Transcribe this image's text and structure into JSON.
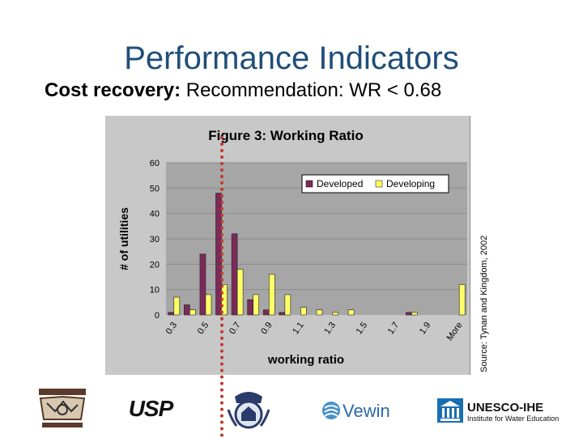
{
  "slide": {
    "title": "Performance Indicators",
    "subtitle_bold": "Cost recovery:",
    "subtitle_rest": " Recommendation: WR < 0.68",
    "source": "Source: Tynan and Kingdom, 2002"
  },
  "logos": {
    "usp": "USP",
    "vewin": "Vewin",
    "unesco_line1": "UNESCO-IHE",
    "unesco_line2": "Institute for Water Education"
  },
  "colors": {
    "title": "#1f4e79",
    "developed": "#7b2a5a",
    "developing": "#ffff66",
    "plot_bg": "#a6a6a6",
    "chart_bg": "#c8c8c8",
    "marker_line": "#c0392b"
  },
  "chart_data": {
    "type": "bar",
    "title": "Figure 3: Working Ratio",
    "xlabel": "working ratio",
    "ylabel": "# of utilities",
    "ylim": [
      0,
      60
    ],
    "yticks": [
      "0",
      "10",
      "20",
      "30",
      "40",
      "50",
      "60"
    ],
    "categories": [
      "0.3",
      "0.4",
      "0.5",
      "0.6",
      "0.7",
      "0.8",
      "0.9",
      "1",
      "1.1",
      "1.2",
      "1.3",
      "1.4",
      "1.5",
      "1.6",
      "1.7",
      "1.8",
      "1.9",
      "2",
      "More"
    ],
    "xtick_labels": [
      "0.3",
      "0.5",
      "0.7",
      "0.9",
      "1.1",
      "1.3",
      "1.5",
      "1.7",
      "1.9",
      "More"
    ],
    "series": [
      {
        "name": "Developed",
        "values": [
          1,
          4,
          24,
          48,
          32,
          6,
          2,
          1,
          0,
          0,
          0,
          0,
          0,
          0,
          0,
          1,
          0,
          0,
          0
        ]
      },
      {
        "name": "Developing",
        "values": [
          7,
          2,
          8,
          12,
          18,
          8,
          16,
          8,
          3,
          2,
          1,
          2,
          0,
          0,
          0,
          1,
          0,
          0,
          12
        ]
      }
    ],
    "legend_position": "top-right",
    "grid": true
  }
}
